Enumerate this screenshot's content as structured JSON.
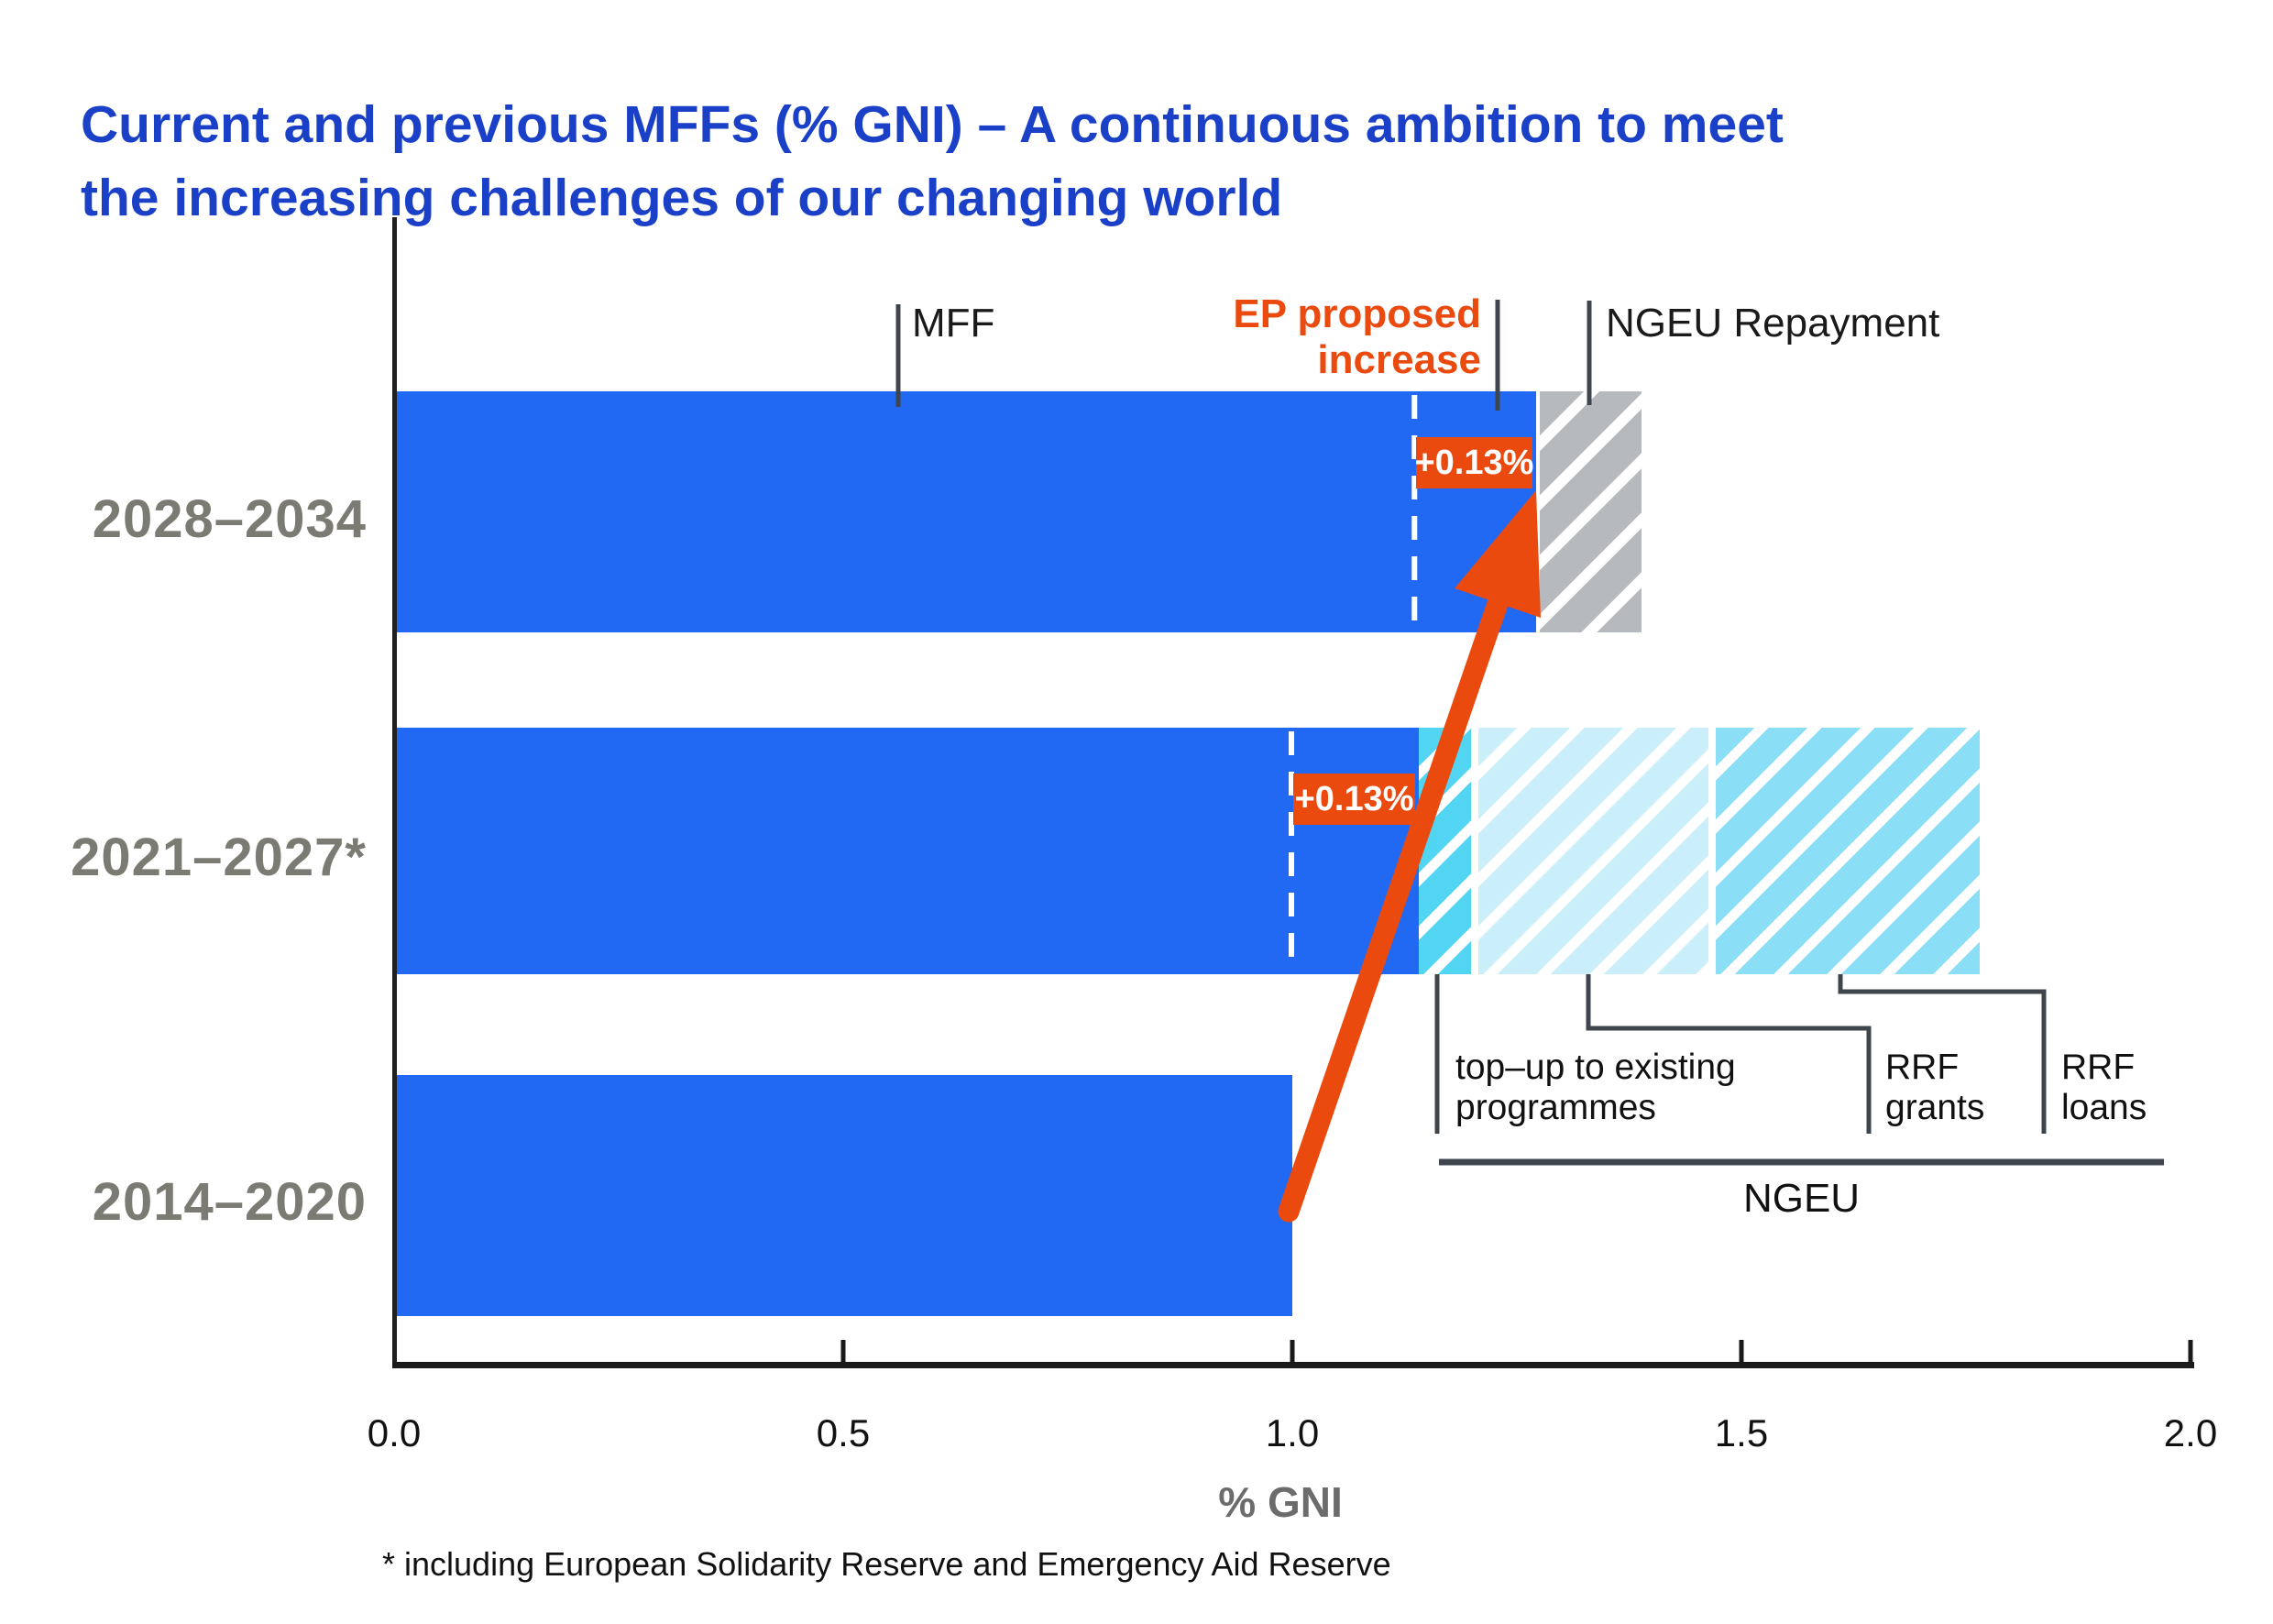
{
  "title": {
    "lines": [
      "Current and previous MFFs (% GNI) – A continuous ambition to meet",
      "the increasing challenges of our changing world"
    ]
  },
  "colors": {
    "title_blue": "#1b40c8",
    "bar_blue": "#2169f3",
    "accent_orange": "#eb4a0f",
    "repayment_gray": "#b6babe",
    "topup_cyan": "#52d4f3",
    "grants_pale_cyan": "#cbeefb",
    "loans_sky_cyan": "#8adef6",
    "row_label_gray": "#7b7b73",
    "leader_line": "#3f454c",
    "axis_black": "#1a1a1a"
  },
  "chart_data": {
    "type": "bar",
    "orientation": "horizontal",
    "stacked": true,
    "title": "Current and previous MFFs (% GNI) – A continuous ambition to meet the increasing challenges of our changing world",
    "xlabel": "% GNI",
    "xlim": [
      0,
      2
    ],
    "grid": false,
    "x_ticks": [
      {
        "value": 0.0,
        "label": "0.0"
      },
      {
        "value": 0.5,
        "label": "0.5"
      },
      {
        "value": 1.0,
        "label": "1.0"
      },
      {
        "value": 1.5,
        "label": "1.5"
      },
      {
        "value": 2.0,
        "label": "2.0"
      }
    ],
    "categories": [
      "2028–2034",
      "2021–2027*",
      "2014–2020"
    ],
    "segment_types": {
      "mff": "MFF",
      "topup": "top-up to existing programmes",
      "grants": "RRF grants",
      "loans": "RRF loans",
      "repayment": "NGEU Repayment"
    },
    "rows": [
      {
        "category": "2028–2034",
        "segments": [
          {
            "key": "mff",
            "from": 0,
            "to": 1.271
          },
          {
            "key": "repayment",
            "from": 1.276,
            "to": 1.389
          }
        ],
        "dashed_guide": 1.136,
        "delta_label": "+0.13%"
      },
      {
        "category": "2021–2027*",
        "segments": [
          {
            "key": "mff",
            "from": 0,
            "to": 1.141
          },
          {
            "key": "topup",
            "from": 1.141,
            "to": 1.199
          },
          {
            "key": "grants",
            "from": 1.207,
            "to": 1.463
          },
          {
            "key": "loans",
            "from": 1.471,
            "to": 1.765
          }
        ],
        "dashed_guide": 0.999,
        "delta_label": "+0.13%"
      },
      {
        "category": "2014–2020",
        "segments": [
          {
            "key": "mff",
            "from": 0,
            "to": 1.0
          }
        ]
      }
    ],
    "annotations": {
      "mff_label": "MFF",
      "ep_label_line1": "EP proposed",
      "ep_label_line2": "increase",
      "ngeu_repayment_label": "NGEU Repayment",
      "topup_label_line1": "top–up to existing",
      "topup_label_line2": "programmes",
      "rrf_grants_line1": "RRF",
      "rrf_grants_line2": "grants",
      "rrf_loans_line1": "RRF",
      "rrf_loans_line2": "loans",
      "ngeu_bracket_label": "NGEU",
      "arrow_note": "orange arrow from 1.0 (2014–2020) to +0.13% EP proposed increase (2028–2034)"
    }
  },
  "footnote": "* including European Solidarity Reserve and Emergency Aid Reserve"
}
